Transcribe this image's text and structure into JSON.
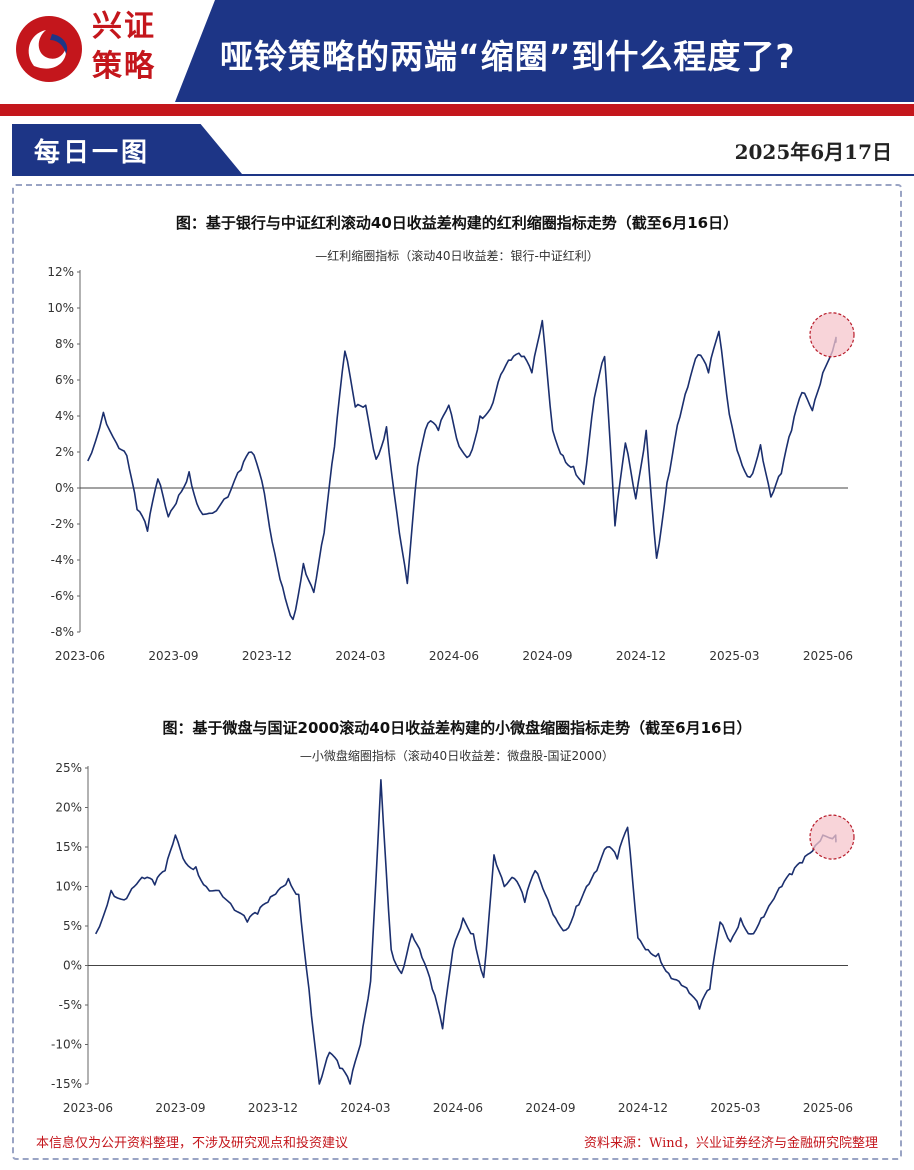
{
  "header": {
    "logo_line1": "兴证",
    "logo_line2": "策略",
    "title": "哑铃策略的两端“缩圈”到什么程度了?",
    "daily_label": "每日一图",
    "date": "2025年6月17日"
  },
  "colors": {
    "navy": "#1d3586",
    "brand_red": "#c4161c",
    "line": "#1b2f6e",
    "highlight_fill": "#f6c6cc",
    "highlight_stroke": "#b81c2a"
  },
  "footer": {
    "disclaimer": "本信息仅为公开资料整理，不涉及研究观点和投资建议",
    "source": "资料来源：Wind，兴业证券经济与金融研究院整理"
  },
  "chart_data": [
    {
      "type": "line",
      "title": "图：基于银行与中证红利滚动40日收益差构建的红利缩圈指标走势（截至6月16日）",
      "legend": "—红利缩圈指标（滚动40日收益差：银行-中证红利）",
      "x_ticks": [
        "2023-06",
        "2023-09",
        "2023-12",
        "2024-03",
        "2024-06",
        "2024-09",
        "2024-12",
        "2025-03",
        "2025-06"
      ],
      "y_ticks": [
        "12%",
        "10%",
        "8%",
        "6%",
        "4%",
        "2%",
        "0%",
        "-2%",
        "-4%",
        "-6%",
        "-8%"
      ],
      "ylim": [
        -8,
        12
      ],
      "unit": "%",
      "grid": false,
      "highlight": "last point circled",
      "series": [
        {
          "x": [
            "2023-06",
            "2023-06",
            "2023-07",
            "2023-07",
            "2023-07",
            "2023-08",
            "2023-08",
            "2023-08",
            "2023-09",
            "2023-09",
            "2023-09",
            "2023-10",
            "2023-10",
            "2023-11",
            "2023-11",
            "2023-11",
            "2023-12",
            "2023-12",
            "2023-12",
            "2024-01",
            "2024-01",
            "2024-01",
            "2024-02",
            "2024-02",
            "2024-02",
            "2024-03",
            "2024-03",
            "2024-03",
            "2024-04",
            "2024-04",
            "2024-04",
            "2024-05",
            "2024-05",
            "2024-05",
            "2024-06",
            "2024-06",
            "2024-06",
            "2024-07",
            "2024-07",
            "2024-07",
            "2024-08",
            "2024-08",
            "2024-08",
            "2024-09",
            "2024-09",
            "2024-09",
            "2024-10",
            "2024-10",
            "2024-10",
            "2024-11",
            "2024-11",
            "2024-11",
            "2024-12",
            "2024-12",
            "2024-12",
            "2025-01",
            "2025-01",
            "2025-01",
            "2025-02",
            "2025-02",
            "2025-02",
            "2025-03",
            "2025-03",
            "2025-03",
            "2025-04",
            "2025-04",
            "2025-04",
            "2025-05",
            "2025-05",
            "2025-05",
            "2025-06",
            "2025-06"
          ],
          "y": [
            1.5,
            4.2,
            2.5,
            1.8,
            -1.2,
            -2.4,
            0.5,
            -1.6,
            -0.4,
            0.9,
            -1.2,
            -1.4,
            -0.5,
            1.0,
            2.0,
            0.4,
            -3.0,
            -5.5,
            -7.3,
            -4.2,
            -5.8,
            -2.5,
            2.3,
            7.6,
            4.5,
            4.6,
            1.6,
            3.4,
            -1.4,
            -5.3,
            1.2,
            3.6,
            3.2,
            4.6,
            2.3,
            1.8,
            4.0,
            4.4,
            6.3,
            7.1,
            7.3,
            6.4,
            9.3,
            3.2,
            1.8,
            1.2,
            0.2,
            5.0,
            7.3,
            -2.1,
            2.5,
            -0.6,
            3.2,
            -3.9,
            0.3,
            3.5,
            5.6,
            7.4,
            6.4,
            8.7,
            4.1,
            1.7,
            0.6,
            2.4,
            -0.5,
            0.8,
            3.2,
            5.3,
            4.3,
            6.4,
            8.3,
            8.4
          ]
        }
      ]
    },
    {
      "type": "line",
      "title": "图：基于微盘与国证2000滚动40日收益差构建的小微盘缩圈指标走势（截至6月16日）",
      "legend": "—小微盘缩圈指标（滚动40日收益差：微盘股-国证2000）",
      "x_ticks": [
        "2023-06",
        "2023-09",
        "2023-12",
        "2024-03",
        "2024-06",
        "2024-09",
        "2024-12",
        "2025-03",
        "2025-06"
      ],
      "y_ticks": [
        "25%",
        "20%",
        "15%",
        "10%",
        "5%",
        "0%",
        "-5%",
        "-10%",
        "-15%"
      ],
      "ylim": [
        -15,
        25
      ],
      "unit": "%",
      "grid": false,
      "highlight": "last point circled",
      "series": [
        {
          "x": [
            "2023-06",
            "2023-06",
            "2023-07",
            "2023-07",
            "2023-07",
            "2023-08",
            "2023-08",
            "2023-08",
            "2023-09",
            "2023-09",
            "2023-09",
            "2023-10",
            "2023-10",
            "2023-11",
            "2023-11",
            "2023-11",
            "2023-12",
            "2023-12",
            "2023-12",
            "2024-01",
            "2024-01",
            "2024-01",
            "2024-02",
            "2024-02",
            "2024-02",
            "2024-03",
            "2024-03",
            "2024-03",
            "2024-04",
            "2024-04",
            "2024-04",
            "2024-05",
            "2024-05",
            "2024-05",
            "2024-06",
            "2024-06",
            "2024-06",
            "2024-07",
            "2024-07",
            "2024-07",
            "2024-08",
            "2024-08",
            "2024-08",
            "2024-09",
            "2024-09",
            "2024-09",
            "2024-10",
            "2024-10",
            "2024-10",
            "2024-11",
            "2024-11",
            "2024-11",
            "2024-12",
            "2024-12",
            "2024-12",
            "2025-01",
            "2025-01",
            "2025-01",
            "2025-02",
            "2025-02",
            "2025-02",
            "2025-03",
            "2025-03",
            "2025-03",
            "2025-04",
            "2025-04",
            "2025-04",
            "2025-05",
            "2025-05",
            "2025-05",
            "2025-06",
            "2025-06"
          ],
          "y": [
            4.0,
            9.5,
            8.3,
            10.0,
            11.0,
            10.2,
            12.0,
            16.5,
            13.0,
            12.5,
            10.0,
            9.5,
            7.0,
            5.5,
            6.5,
            8.0,
            9.5,
            11.0,
            9.0,
            -3.0,
            -15.0,
            -11.0,
            -13.0,
            -15.0,
            -10.0,
            -2.0,
            23.5,
            2.0,
            -1.0,
            4.0,
            1.0,
            -3.0,
            -8.0,
            2.0,
            6.0,
            4.0,
            -1.5,
            14.0,
            10.0,
            11.0,
            8.0,
            12.0,
            9.0,
            6.0,
            4.5,
            7.5,
            10.0,
            12.0,
            15.0,
            13.5,
            17.5,
            3.5,
            2.0,
            1.5,
            -1.0,
            -2.0,
            -3.5,
            -5.5,
            -3.0,
            5.5,
            3.0,
            6.0,
            4.0,
            6.0,
            8.0,
            10.0,
            11.5,
            13.0,
            14.5,
            16.5,
            16.5,
            16.0
          ]
        }
      ]
    }
  ]
}
